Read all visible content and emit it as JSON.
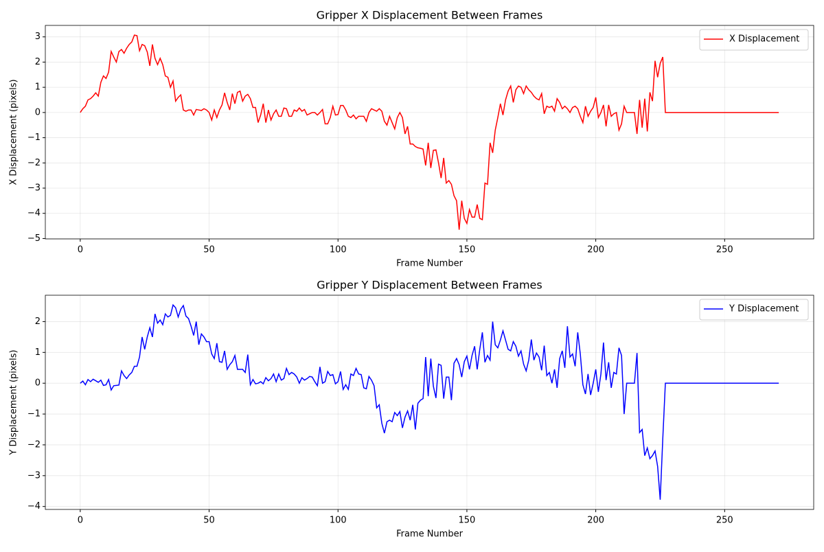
{
  "chart_data": [
    {
      "type": "line",
      "title": "Gripper X Displacement Between Frames",
      "x_label": "Frame Number",
      "y_label": "X Displacement (pixels)",
      "x": [
        0,
        1,
        2,
        3,
        4,
        5,
        6,
        7,
        8,
        9,
        10,
        11,
        12,
        13,
        14,
        15,
        16,
        17,
        18,
        19,
        20,
        21,
        22,
        23,
        24,
        25,
        26,
        27,
        28,
        29,
        30,
        31,
        32,
        33,
        34,
        35,
        36,
        37,
        38,
        39,
        40,
        41,
        42,
        43,
        44,
        45,
        46,
        47,
        48,
        49,
        50,
        51,
        52,
        53,
        54,
        55,
        56,
        57,
        58,
        59,
        60,
        61,
        62,
        63,
        64,
        65,
        66,
        67,
        68,
        69,
        70,
        71,
        72,
        73,
        74,
        75,
        76,
        77,
        78,
        79,
        80,
        81,
        82,
        83,
        84,
        85,
        86,
        87,
        88,
        89,
        90,
        91,
        92,
        93,
        94,
        95,
        96,
        97,
        98,
        99,
        100,
        101,
        102,
        103,
        104,
        105,
        106,
        107,
        108,
        109,
        110,
        111,
        112,
        113,
        114,
        115,
        116,
        117,
        118,
        119,
        120,
        121,
        122,
        123,
        124,
        125,
        126,
        127,
        128,
        129,
        130,
        131,
        132,
        133,
        134,
        135,
        136,
        137,
        138,
        139,
        140,
        141,
        142,
        143,
        144,
        145,
        146,
        147,
        148,
        149,
        150,
        151,
        152,
        153,
        154,
        155,
        156,
        157,
        158,
        159,
        160,
        161,
        162,
        163,
        164,
        165,
        166,
        167,
        168,
        169,
        170,
        171,
        172,
        173,
        174,
        175,
        176,
        177,
        178,
        179,
        180,
        181,
        182,
        183,
        184,
        185,
        186,
        187,
        188,
        189,
        190,
        191,
        192,
        193,
        194,
        195,
        196,
        197,
        198,
        199,
        200,
        201,
        202,
        203,
        204,
        205,
        206,
        207,
        208,
        209,
        210,
        211,
        212,
        213,
        214,
        215,
        216,
        217,
        218,
        219,
        220,
        221,
        222,
        223,
        224,
        225,
        226,
        227,
        228,
        229,
        230,
        231,
        232,
        233,
        234,
        235,
        236,
        237,
        238,
        239,
        240,
        241,
        242,
        243,
        244,
        245,
        246,
        247,
        248,
        249,
        250,
        251,
        252,
        253,
        254,
        255,
        256,
        257,
        258,
        259,
        260,
        261,
        262,
        263,
        264,
        265,
        266,
        267,
        268,
        269,
        270,
        271
      ],
      "series": [
        {
          "name": "X Displacement",
          "color": "#ff0000",
          "values": [
            0,
            0.15,
            0.25,
            0.5,
            0.55,
            0.65,
            0.78,
            0.65,
            1.2,
            1.45,
            1.35,
            1.6,
            2.42,
            2.2,
            2.0,
            2.42,
            2.5,
            2.35,
            2.55,
            2.7,
            2.8,
            3.07,
            3.05,
            2.45,
            2.7,
            2.65,
            2.4,
            1.85,
            2.7,
            2.15,
            1.9,
            2.15,
            1.9,
            1.45,
            1.4,
            1.0,
            1.25,
            0.45,
            0.6,
            0.7,
            0.1,
            0.05,
            0.1,
            0.1,
            -0.1,
            0.12,
            0.1,
            0.08,
            0.15,
            0.1,
            0.0,
            -0.3,
            0.1,
            -0.2,
            0.1,
            0.3,
            0.78,
            0.4,
            0.1,
            0.75,
            0.35,
            0.8,
            0.85,
            0.45,
            0.65,
            0.72,
            0.55,
            0.2,
            0.2,
            -0.4,
            -0.1,
            0.35,
            -0.4,
            0.1,
            -0.3,
            -0.05,
            0.1,
            -0.15,
            -0.15,
            0.18,
            0.15,
            -0.15,
            -0.15,
            0.1,
            0.05,
            0.18,
            0.05,
            0.12,
            -0.1,
            -0.05,
            0.0,
            0.0,
            -0.1,
            0.0,
            0.12,
            -0.45,
            -0.45,
            -0.2,
            0.25,
            -0.1,
            -0.08,
            0.28,
            0.28,
            0.1,
            -0.15,
            -0.2,
            -0.1,
            -0.25,
            -0.15,
            -0.15,
            -0.15,
            -0.35,
            0.0,
            0.15,
            0.1,
            0.05,
            0.15,
            0.05,
            -0.35,
            -0.5,
            -0.15,
            -0.4,
            -0.65,
            -0.2,
            0.0,
            -0.2,
            -0.85,
            -0.55,
            -1.25,
            -1.25,
            -1.35,
            -1.4,
            -1.42,
            -1.45,
            -2.1,
            -1.2,
            -2.2,
            -1.5,
            -1.48,
            -2.0,
            -2.6,
            -1.8,
            -2.8,
            -2.7,
            -2.85,
            -3.3,
            -3.5,
            -4.65,
            -3.5,
            -4.2,
            -4.4,
            -3.85,
            -4.15,
            -4.15,
            -3.65,
            -4.2,
            -4.25,
            -2.8,
            -2.85,
            -1.2,
            -1.6,
            -0.7,
            -0.2,
            0.35,
            -0.1,
            0.5,
            0.85,
            1.05,
            0.4,
            0.9,
            1.05,
            1.0,
            0.75,
            1.05,
            0.9,
            0.8,
            0.65,
            0.55,
            0.5,
            0.75,
            -0.05,
            0.25,
            0.2,
            0.25,
            0.05,
            0.55,
            0.4,
            0.15,
            0.25,
            0.15,
            0.0,
            0.2,
            0.25,
            0.15,
            -0.15,
            -0.4,
            0.25,
            -0.15,
            0.05,
            0.2,
            0.6,
            -0.2,
            0.0,
            0.3,
            -0.55,
            0.3,
            -0.15,
            -0.05,
            0.0,
            -0.7,
            -0.45,
            0.25,
            0.0,
            0.0,
            0.0,
            0.0,
            -0.85,
            0.5,
            -0.6,
            0.55,
            -0.75,
            0.8,
            0.45,
            2.05,
            1.4,
            1.95,
            2.2,
            0.0,
            0,
            0,
            0,
            0,
            0,
            0,
            0,
            0,
            0,
            0,
            0,
            0,
            0,
            0,
            0,
            0,
            0,
            0,
            0,
            0,
            0,
            0,
            0,
            0,
            0,
            0,
            0,
            0,
            0,
            0,
            0,
            0,
            0,
            0,
            0,
            0,
            0,
            0,
            0,
            0,
            0,
            0,
            0,
            0
          ]
        }
      ],
      "xlim": [
        -13.55,
        284.55
      ],
      "xticks": [
        0,
        50,
        100,
        150,
        200,
        250
      ],
      "ylim": [
        -5.015,
        3.455
      ],
      "yticks": [
        {
          "value": -5,
          "label": "−5"
        },
        {
          "value": -4,
          "label": "−4"
        },
        {
          "value": -3,
          "label": "−3"
        },
        {
          "value": -2,
          "label": "−2"
        },
        {
          "value": -1,
          "label": "−1"
        },
        0,
        1,
        2,
        3
      ],
      "grid": true,
      "legend": "upper-right"
    },
    {
      "type": "line",
      "title": "Gripper Y Displacement Between Frames",
      "x_label": "Frame Number",
      "y_label": "Y Displacement (pixels)",
      "x": [
        0,
        1,
        2,
        3,
        4,
        5,
        6,
        7,
        8,
        9,
        10,
        11,
        12,
        13,
        14,
        15,
        16,
        17,
        18,
        19,
        20,
        21,
        22,
        23,
        24,
        25,
        26,
        27,
        28,
        29,
        30,
        31,
        32,
        33,
        34,
        35,
        36,
        37,
        38,
        39,
        40,
        41,
        42,
        43,
        44,
        45,
        46,
        47,
        48,
        49,
        50,
        51,
        52,
        53,
        54,
        55,
        56,
        57,
        58,
        59,
        60,
        61,
        62,
        63,
        64,
        65,
        66,
        67,
        68,
        69,
        70,
        71,
        72,
        73,
        74,
        75,
        76,
        77,
        78,
        79,
        80,
        81,
        82,
        83,
        84,
        85,
        86,
        87,
        88,
        89,
        90,
        91,
        92,
        93,
        94,
        95,
        96,
        97,
        98,
        99,
        100,
        101,
        102,
        103,
        104,
        105,
        106,
        107,
        108,
        109,
        110,
        111,
        112,
        113,
        114,
        115,
        116,
        117,
        118,
        119,
        120,
        121,
        122,
        123,
        124,
        125,
        126,
        127,
        128,
        129,
        130,
        131,
        132,
        133,
        134,
        135,
        136,
        137,
        138,
        139,
        140,
        141,
        142,
        143,
        144,
        145,
        146,
        147,
        148,
        149,
        150,
        151,
        152,
        153,
        154,
        155,
        156,
        157,
        158,
        159,
        160,
        161,
        162,
        163,
        164,
        165,
        166,
        167,
        168,
        169,
        170,
        171,
        172,
        173,
        174,
        175,
        176,
        177,
        178,
        179,
        180,
        181,
        182,
        183,
        184,
        185,
        186,
        187,
        188,
        189,
        190,
        191,
        192,
        193,
        194,
        195,
        196,
        197,
        198,
        199,
        200,
        201,
        202,
        203,
        204,
        205,
        206,
        207,
        208,
        209,
        210,
        211,
        212,
        213,
        214,
        215,
        216,
        217,
        218,
        219,
        220,
        221,
        222,
        223,
        224,
        225,
        226,
        227,
        228,
        229,
        230,
        231,
        232,
        233,
        234,
        235,
        236,
        237,
        238,
        239,
        240,
        241,
        242,
        243,
        244,
        245,
        246,
        247,
        248,
        249,
        250,
        251,
        252,
        253,
        254,
        255,
        256,
        257,
        258,
        259,
        260,
        261,
        262,
        263,
        264,
        265,
        266,
        267,
        268,
        269,
        270,
        271
      ],
      "series": [
        {
          "name": "Y Displacement",
          "color": "#0000ff",
          "values": [
            0,
            0.07,
            -0.05,
            0.12,
            0.05,
            0.13,
            0.08,
            0.03,
            0.1,
            -0.07,
            -0.05,
            0.12,
            -0.22,
            -0.08,
            -0.07,
            -0.06,
            0.4,
            0.25,
            0.15,
            0.27,
            0.35,
            0.55,
            0.55,
            0.85,
            1.5,
            1.1,
            1.5,
            1.8,
            1.5,
            2.25,
            1.95,
            2.05,
            1.9,
            2.25,
            2.15,
            2.2,
            2.54,
            2.45,
            2.15,
            2.4,
            2.52,
            2.18,
            2.1,
            1.85,
            1.55,
            2.0,
            1.25,
            1.6,
            1.5,
            1.35,
            1.35,
            0.95,
            0.8,
            1.3,
            0.7,
            0.68,
            1.05,
            0.45,
            0.6,
            0.7,
            0.9,
            0.45,
            0.45,
            0.45,
            0.35,
            0.93,
            -0.05,
            0.12,
            -0.02,
            0.0,
            0.05,
            -0.02,
            0.18,
            0.08,
            0.15,
            0.3,
            0.05,
            0.3,
            0.1,
            0.15,
            0.48,
            0.28,
            0.35,
            0.3,
            0.2,
            0.0,
            0.18,
            0.1,
            0.15,
            0.22,
            0.2,
            0.05,
            -0.08,
            0.53,
            0.0,
            0.05,
            0.38,
            0.25,
            0.28,
            -0.02,
            0.05,
            0.38,
            -0.2,
            -0.05,
            -0.2,
            0.3,
            0.25,
            0.48,
            0.3,
            0.28,
            -0.15,
            -0.18,
            0.22,
            0.1,
            -0.08,
            -0.8,
            -0.7,
            -1.3,
            -1.62,
            -1.25,
            -1.2,
            -1.25,
            -0.95,
            -1.05,
            -0.92,
            -1.45,
            -1.1,
            -0.9,
            -1.2,
            -0.7,
            -1.5,
            -0.65,
            -0.55,
            -0.5,
            0.85,
            -0.42,
            0.8,
            -0.1,
            -0.48,
            0.62,
            0.58,
            -0.5,
            0.2,
            0.2,
            -0.55,
            0.65,
            0.8,
            0.6,
            0.2,
            0.7,
            0.88,
            0.45,
            0.9,
            1.2,
            0.45,
            1.1,
            1.65,
            0.68,
            0.9,
            0.75,
            2.0,
            1.25,
            1.15,
            1.4,
            1.7,
            1.4,
            1.1,
            1.05,
            1.35,
            1.2,
            0.88,
            1.05,
            0.62,
            0.4,
            0.75,
            1.42,
            0.75,
            0.98,
            0.85,
            0.42,
            1.22,
            0.25,
            0.35,
            0.0,
            0.45,
            -0.15,
            0.8,
            1.05,
            0.5,
            1.85,
            0.85,
            0.95,
            0.55,
            1.65,
            0.95,
            -0.05,
            -0.35,
            0.3,
            -0.38,
            0.0,
            0.45,
            -0.28,
            0.3,
            1.32,
            0.1,
            0.68,
            -0.15,
            0.35,
            0.3,
            1.15,
            0.9,
            -1.0,
            0.0,
            0.0,
            0.0,
            0.0,
            0.98,
            -1.6,
            -1.5,
            -2.35,
            -2.1,
            -2.45,
            -2.35,
            -2.2,
            -2.7,
            -3.78,
            -1.8,
            0.0,
            0,
            0,
            0,
            0,
            0,
            0,
            0,
            0,
            0,
            0,
            0,
            0,
            0,
            0,
            0,
            0,
            0,
            0,
            0,
            0,
            0,
            0,
            0,
            0,
            0,
            0,
            0,
            0,
            0,
            0,
            0,
            0,
            0,
            0,
            0,
            0,
            0,
            0,
            0,
            0,
            0,
            0,
            0,
            0
          ]
        }
      ],
      "xlim": [
        -13.55,
        284.55
      ],
      "xticks": [
        0,
        50,
        100,
        150,
        200,
        250
      ],
      "ylim": [
        -4.096,
        2.856
      ],
      "yticks": [
        {
          "value": -4,
          "label": "−4"
        },
        {
          "value": -3,
          "label": "−3"
        },
        {
          "value": -2,
          "label": "−2"
        },
        {
          "value": -1,
          "label": "−1"
        },
        0,
        1,
        2
      ],
      "grid": true,
      "legend": "upper-right"
    }
  ]
}
